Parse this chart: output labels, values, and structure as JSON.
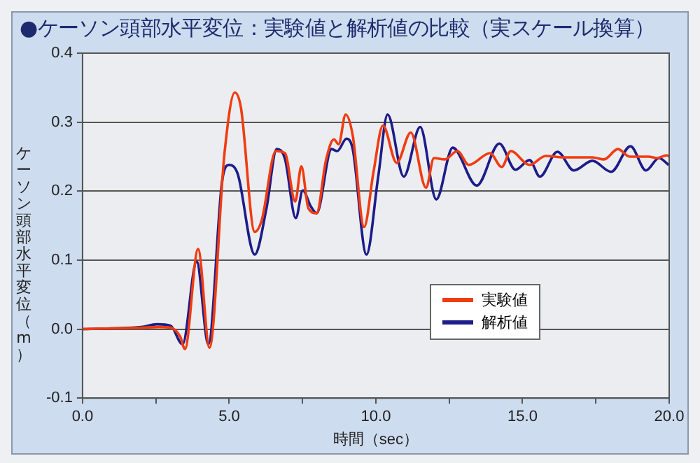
{
  "chart_data": {
    "type": "line",
    "title": "●ケーソン頭部水平変位：実験値と解析値の比較（実スケール換算）",
    "xlabel": "時間（sec）",
    "ylabel": "ケーソン頭部水平変位（m）",
    "xlim": [
      0,
      20
    ],
    "xticks": [
      {
        "value": 0,
        "label": "0.0"
      },
      {
        "value": 2.5,
        "label": null
      },
      {
        "value": 5,
        "label": "5.0"
      },
      {
        "value": 7.5,
        "label": null
      },
      {
        "value": 10,
        "label": "10.0"
      },
      {
        "value": 12.5,
        "label": null
      },
      {
        "value": 15,
        "label": "15.0"
      },
      {
        "value": 17.5,
        "label": null
      },
      {
        "value": 20,
        "label": "20.0"
      }
    ],
    "ylim": [
      -0.1,
      0.4
    ],
    "yticks": [
      -0.1,
      {
        "value": 0,
        "label": "0.0"
      },
      0.1,
      0.2,
      0.3,
      0.4
    ],
    "grid": "y",
    "legend": "bottom right",
    "marker": "none",
    "line_style": "solid",
    "series": [
      {
        "name": "実験値",
        "color": "#f03c10",
        "x": [
          0,
          1,
          2,
          2.6,
          3,
          3.33,
          3.49,
          3.94,
          4.33,
          4.84,
          5.19,
          5.4,
          5.87,
          6.11,
          6.59,
          6.9,
          7.25,
          7.46,
          7.7,
          7.98,
          8.3,
          8.57,
          8.73,
          8.97,
          9.21,
          9.6,
          9.92,
          10.24,
          10.71,
          11.19,
          11.71,
          11.98,
          12.35,
          12.78,
          13.17,
          13.89,
          14.29,
          14.6,
          15.24,
          15.79,
          16.4,
          17.38,
          17.78,
          18.25,
          18.65,
          19.29,
          19.6,
          19.92,
          20
        ],
        "values": [
          0,
          0.001,
          0.002,
          0.003,
          0.002,
          -0.011,
          -0.029,
          0.116,
          -0.027,
          0.255,
          0.343,
          0.321,
          0.141,
          0.158,
          0.258,
          0.255,
          0.185,
          0.236,
          0.175,
          0.168,
          0.245,
          0.275,
          0.268,
          0.311,
          0.281,
          0.148,
          0.228,
          0.295,
          0.241,
          0.285,
          0.205,
          0.248,
          0.246,
          0.258,
          0.238,
          0.255,
          0.235,
          0.258,
          0.238,
          0.251,
          0.249,
          0.249,
          0.246,
          0.261,
          0.25,
          0.25,
          0.248,
          0.252,
          0.25
        ]
      },
      {
        "name": "解析値",
        "color": "#1c1c8a",
        "x": [
          0,
          1,
          2,
          2.54,
          3,
          3.41,
          3.89,
          4.29,
          4.76,
          5.0,
          5.29,
          5.87,
          6.27,
          6.62,
          6.9,
          7.27,
          7.51,
          7.78,
          7.98,
          8.49,
          8.68,
          9.0,
          9.21,
          9.68,
          10.08,
          10.4,
          10.95,
          11.51,
          12.06,
          12.62,
          13.44,
          14.21,
          14.76,
          15.24,
          15.59,
          16.19,
          16.75,
          17.38,
          18.02,
          18.68,
          19.21,
          19.65,
          19.98
        ],
        "values": [
          0,
          0.001,
          0.003,
          0.007,
          0.005,
          -0.022,
          0.098,
          -0.022,
          0.215,
          0.238,
          0.225,
          0.108,
          0.175,
          0.261,
          0.247,
          0.161,
          0.201,
          0.178,
          0.168,
          0.261,
          0.258,
          0.276,
          0.261,
          0.108,
          0.221,
          0.311,
          0.221,
          0.293,
          0.188,
          0.263,
          0.208,
          0.269,
          0.231,
          0.245,
          0.221,
          0.257,
          0.23,
          0.244,
          0.228,
          0.265,
          0.23,
          0.248,
          0.238
        ]
      }
    ]
  }
}
